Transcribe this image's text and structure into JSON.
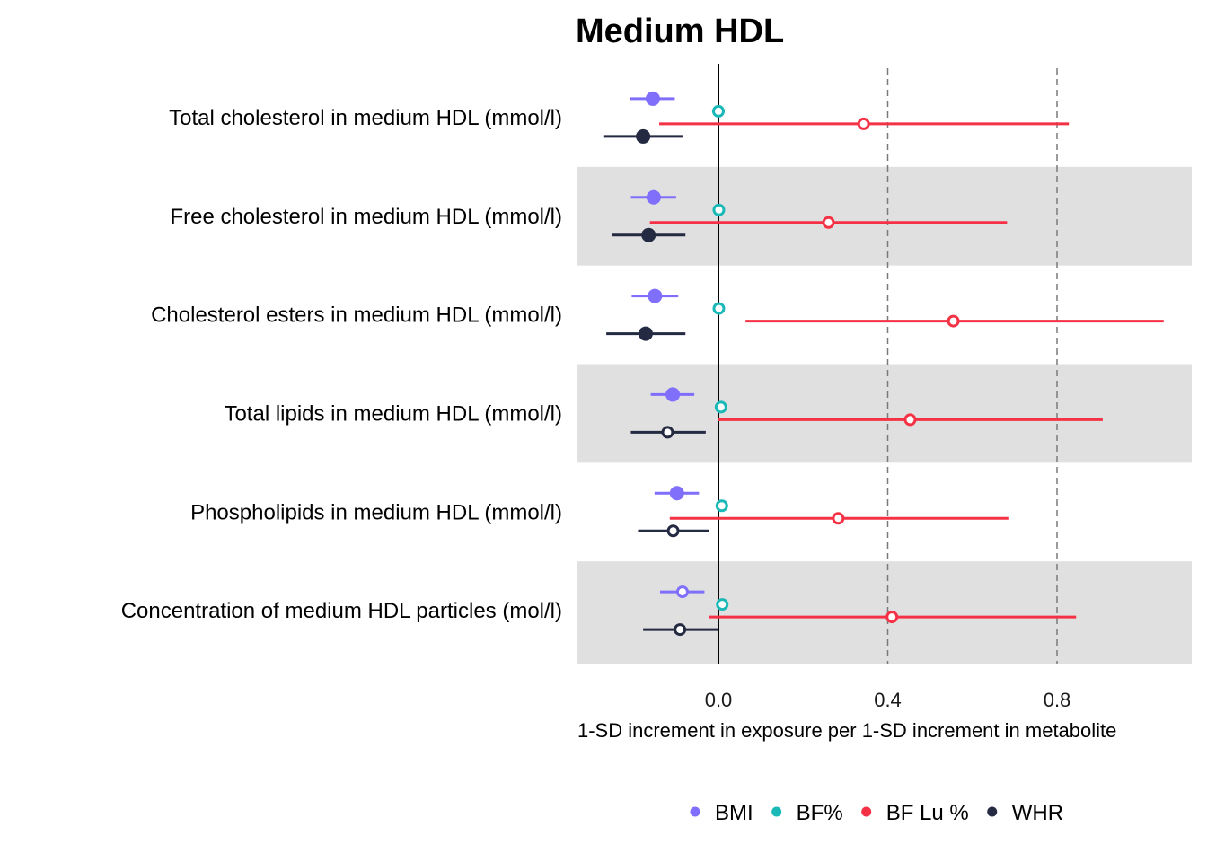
{
  "chart_data": {
    "type": "forest",
    "title": "Medium HDL",
    "xlabel": "1-SD increment in exposure per 1-SD increment in metabolite",
    "xlim": [
      -0.335,
      1.125
    ],
    "x_ticks": [
      0.0,
      0.4,
      0.8
    ],
    "x_tick_labels": [
      "0.0",
      "0.4",
      "0.8"
    ],
    "reference_line": 0,
    "dashed_lines": [
      0.4,
      0.8
    ],
    "legend_position": "bottom",
    "categories": [
      "Total cholesterol in medium HDL (mmol/l)",
      "Free cholesterol in medium HDL (mmol/l)",
      "Cholesterol esters in medium HDL (mmol/l)",
      "Total lipids in medium HDL (mmol/l)",
      "Phospholipids in medium HDL (mmol/l)",
      "Concentration of medium HDL particles (mol/l)"
    ],
    "series": [
      {
        "name": "BMI",
        "color": "#7f6ffb",
        "estimate": [
          -0.155,
          -0.153,
          -0.15,
          -0.108,
          -0.098,
          -0.085
        ],
        "lower": [
          -0.21,
          -0.207,
          -0.205,
          -0.16,
          -0.151,
          -0.138
        ],
        "upper": [
          -0.103,
          -0.1,
          -0.095,
          -0.057,
          -0.046,
          -0.033
        ],
        "filled": [
          true,
          true,
          true,
          true,
          true,
          false
        ]
      },
      {
        "name": "BF%",
        "color": "#1ab9b7",
        "estimate": [
          0.0,
          0.001,
          0.001,
          0.006,
          0.008,
          0.009
        ],
        "lower": [
          -0.015,
          -0.013,
          -0.013,
          -0.008,
          -0.006,
          -0.005
        ],
        "upper": [
          0.015,
          0.015,
          0.015,
          0.02,
          0.022,
          0.023
        ],
        "filled": [
          false,
          false,
          false,
          false,
          false,
          false
        ]
      },
      {
        "name": "BF Lu %",
        "color": "#f53245",
        "estimate": [
          0.343,
          0.26,
          0.555,
          0.453,
          0.283,
          0.41
        ],
        "lower": [
          -0.14,
          -0.162,
          0.064,
          0.0,
          -0.115,
          -0.022
        ],
        "upper": [
          0.828,
          0.682,
          1.052,
          0.908,
          0.685,
          0.845
        ],
        "filled": [
          false,
          false,
          false,
          false,
          false,
          false
        ]
      },
      {
        "name": "WHR",
        "color": "#232a42",
        "estimate": [
          -0.178,
          -0.165,
          -0.172,
          -0.12,
          -0.107,
          -0.091
        ],
        "lower": [
          -0.27,
          -0.252,
          -0.265,
          -0.207,
          -0.19,
          -0.178
        ],
        "upper": [
          -0.085,
          -0.078,
          -0.078,
          -0.03,
          -0.022,
          0.0
        ],
        "filled": [
          true,
          true,
          true,
          false,
          false,
          false
        ]
      }
    ]
  }
}
